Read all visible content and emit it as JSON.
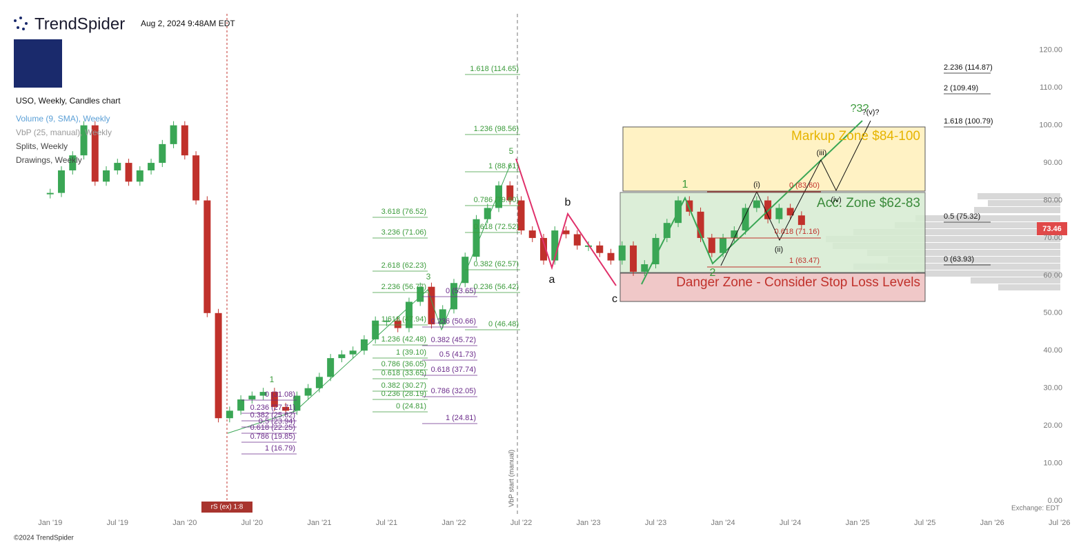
{
  "header": {
    "brand": "TrendSpider",
    "timestamp": "Aug 2, 2024 9:48AM EDT",
    "legend": [
      "USO, Weekly, Candles chart",
      "Volume (9, SMA), Weekly",
      "VbP (25, manual), Weekly",
      "Splits, Weekly",
      "Drawings, Weekly"
    ]
  },
  "footer": {
    "copyright": "©2024 TrendSpider",
    "exchange": "Exchange: EDT"
  },
  "chart_data": {
    "type": "candlestick",
    "x": [
      "2019-01",
      "2019-02",
      "2019-03",
      "2019-04",
      "2019-05",
      "2019-06",
      "2019-07",
      "2019-08",
      "2019-09",
      "2019-10",
      "2019-11",
      "2019-12",
      "2020-01",
      "2020-02",
      "2020-03",
      "2020-04",
      "2020-05",
      "2020-06",
      "2020-07",
      "2020-08",
      "2020-09",
      "2020-10",
      "2020-11",
      "2020-12",
      "2021-01",
      "2021-02",
      "2021-03",
      "2021-04",
      "2021-05",
      "2021-06",
      "2021-07",
      "2021-08",
      "2021-09",
      "2021-10",
      "2021-11",
      "2021-12",
      "2022-01",
      "2022-02",
      "2022-03",
      "2022-04",
      "2022-05",
      "2022-06",
      "2022-07",
      "2022-08",
      "2022-09",
      "2022-10",
      "2022-11",
      "2022-12",
      "2023-01",
      "2023-02",
      "2023-03",
      "2023-04",
      "2023-05",
      "2023-06",
      "2023-07",
      "2023-08",
      "2023-09",
      "2023-10",
      "2023-11",
      "2023-12",
      "2024-01",
      "2024-02",
      "2024-03",
      "2024-04",
      "2024-05",
      "2024-06",
      "2024-07",
      "2024-08"
    ],
    "series": [
      {
        "name": "USO",
        "up_color": "#3aa655",
        "down_color": "#c0312b",
        "values": [
          82,
          88,
          92,
          100,
          85,
          88,
          90,
          85,
          88,
          90,
          95,
          100,
          92,
          80,
          50,
          22,
          24,
          27,
          28,
          29,
          25,
          24,
          28,
          30,
          33,
          38,
          39,
          40,
          43,
          48,
          48,
          46,
          53,
          57,
          47,
          51,
          58,
          65,
          75,
          78,
          84,
          80,
          72,
          70,
          64,
          72,
          71,
          68,
          68,
          66,
          64,
          68,
          61,
          63,
          70,
          74,
          80,
          77,
          70,
          66,
          70,
          72,
          78,
          80,
          75,
          78,
          76,
          73.46
        ]
      }
    ],
    "last_price": 73.46,
    "xlim": [
      "2018-10",
      "2026-08"
    ],
    "xticks": [
      {
        "value": "2019-01",
        "label": "Jan '19"
      },
      {
        "value": "2019-07",
        "label": "Jul '19"
      },
      {
        "value": "2020-01",
        "label": "Jan '20"
      },
      {
        "value": "2020-07",
        "label": "Jul '20"
      },
      {
        "value": "2021-01",
        "label": "Jan '21"
      },
      {
        "value": "2021-07",
        "label": "Jul '21"
      },
      {
        "value": "2022-01",
        "label": "Jan '22"
      },
      {
        "value": "2022-07",
        "label": "Jul '22"
      },
      {
        "value": "2023-01",
        "label": "Jan '23"
      },
      {
        "value": "2023-07",
        "label": "Jul '23"
      },
      {
        "value": "2024-01",
        "label": "Jan '24"
      },
      {
        "value": "2024-07",
        "label": "Jul '24"
      },
      {
        "value": "2025-01",
        "label": "Jan '25"
      },
      {
        "value": "2025-07",
        "label": "Jul '25"
      },
      {
        "value": "2026-01",
        "label": "Jan '26"
      },
      {
        "value": "2026-07",
        "label": "Jul '26"
      }
    ],
    "ylim": [
      -3.5,
      129.7
    ],
    "yticks": [
      {
        "value": 0,
        "label": "0.00"
      },
      {
        "value": 10,
        "label": "10.00"
      },
      {
        "value": 20,
        "label": "20.00"
      },
      {
        "value": 30,
        "label": "30.00"
      },
      {
        "value": 40,
        "label": "40.00"
      },
      {
        "value": 50,
        "label": "50.00"
      },
      {
        "value": 60,
        "label": "60.00"
      },
      {
        "value": 70,
        "label": "70.00"
      },
      {
        "value": 80,
        "label": "80.00"
      },
      {
        "value": 90,
        "label": "90.00"
      },
      {
        "value": 100,
        "label": "100.00"
      },
      {
        "value": 110,
        "label": "110.00"
      },
      {
        "value": 120,
        "label": "120.00"
      }
    ],
    "zones": [
      "Markup Zone $84-100",
      "Acc. Zone $62-83",
      "Danger Zone - Consider Stop Loss Levels"
    ],
    "waves": [
      "1",
      "3",
      "5",
      "a",
      "b",
      "c",
      "1",
      "2",
      "(i)",
      "(ii)",
      "(iii)",
      "(iv)",
      "?(v)?",
      "?3?"
    ],
    "notes": [
      "VbP start (manual)",
      "rS (ex) 1:8"
    ],
    "fib_sets": [
      {
        "color": "#3a9a3a",
        "labels": [
          "1.618 (114.65)",
          "1.236 (98.56)",
          "1 (88.61)",
          "0.786 (79.60)",
          "0.618 (72.52)",
          "0.382 (62.57)",
          "0.236 (56.42)",
          "0 (46.48)"
        ]
      },
      {
        "color": "#3a9a3a",
        "labels": [
          "3.618 (76.52)",
          "3.236 (71.06)",
          "2.618 (62.23)",
          "2.236 (56.77)",
          "1.618 (47.94)",
          "1.236 (42.48)",
          "1 (39.10)",
          "0.786 (36.05)",
          "0.618 (33.65)",
          "0.382 (30.27)",
          "0.236 (28.19)",
          "0 (24.81)"
        ]
      },
      {
        "color": "#6a2a8a",
        "labels": [
          "0 (53.65)",
          "0.236 (50.66)",
          "0.382 (45.72)",
          "0.5 (41.73)",
          "0.618 (37.74)",
          "0.786 (32.05)",
          "1 (24.81)"
        ]
      },
      {
        "color": "#6a2a8a",
        "labels": [
          "0 (31.08)",
          "0.236 (27.71)",
          "0.382 (25.62)",
          "0.5 (23.94)",
          "0.618 (22.25)",
          "0.786 (19.85)",
          "1 (16.79)"
        ]
      },
      {
        "color": "#c0312b",
        "labels": [
          "0 (83.60)",
          "0.618 (71.16)",
          "1 (63.47)"
        ]
      },
      {
        "color": "#111111",
        "labels": [
          "2.236 (114.87)",
          "2 (109.49)",
          "1.618 (100.79)",
          "0.5 (75.32)",
          "0 (63.93)"
        ]
      }
    ]
  }
}
